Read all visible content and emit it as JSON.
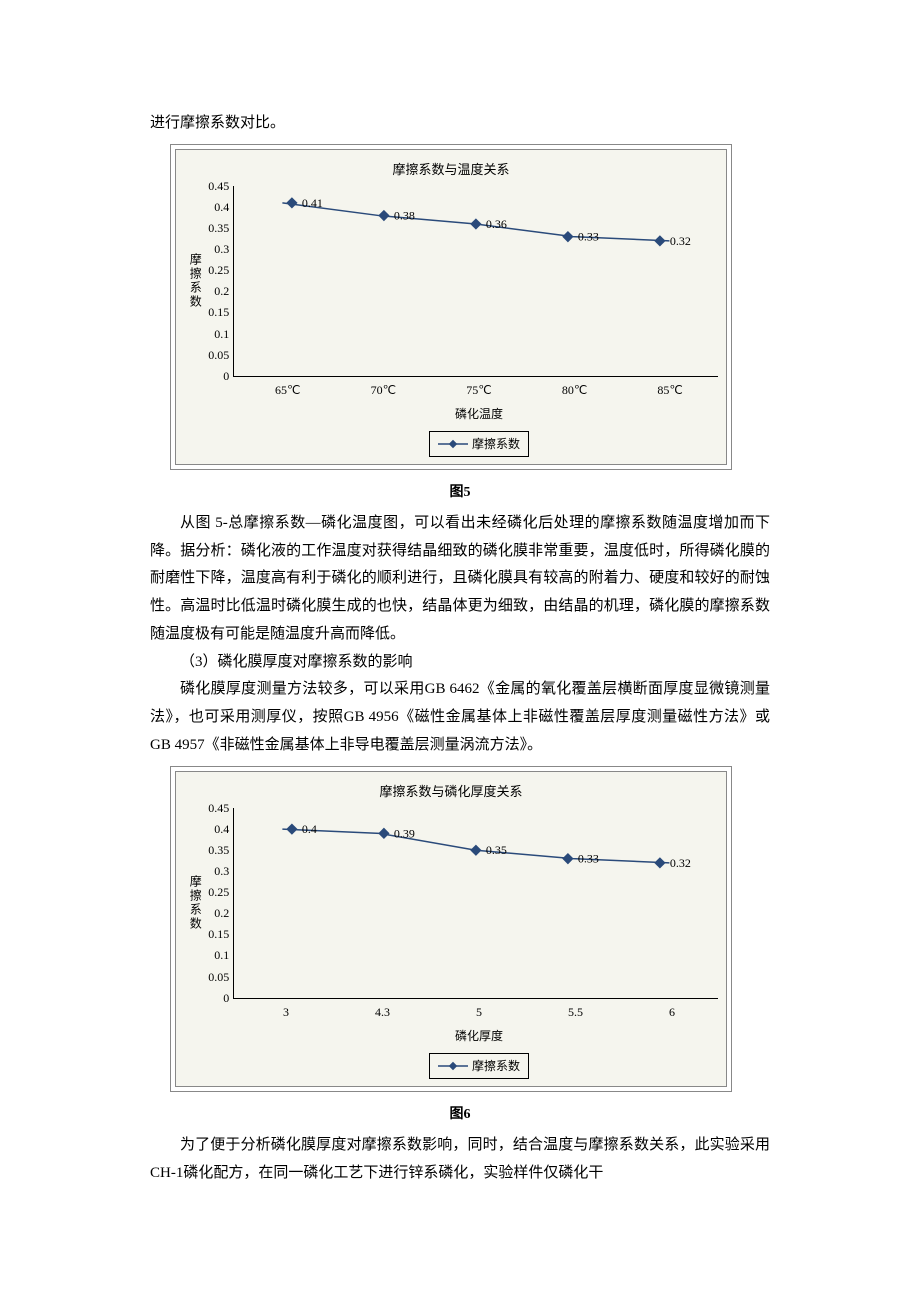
{
  "intro_line": "进行摩擦系数对比。",
  "chart1": {
    "type": "line",
    "title": "摩擦系数与温度关系",
    "ylabel": "摩擦系数",
    "xlabel": "磷化温度",
    "legend": "摩擦系数",
    "ylim": [
      0,
      0.45
    ],
    "ytick_step": 0.05,
    "yticks": [
      "0.45",
      "0.4",
      "0.35",
      "0.3",
      "0.25",
      "0.2",
      "0.15",
      "0.1",
      "0.05",
      "0"
    ],
    "xticks": [
      "65℃",
      "70℃",
      "75℃",
      "80℃",
      "85℃"
    ],
    "values": [
      0.41,
      0.38,
      0.36,
      0.33,
      0.32
    ],
    "value_labels": [
      "0.41",
      "0.38",
      "0.36",
      "0.33",
      "0.32"
    ],
    "line_color": "#2a4a7a",
    "marker_color": "#2a4a7a",
    "background_color": "#f5f5ee",
    "border_color": "#888888"
  },
  "fig5_caption": "图5",
  "para1": "从图 5-总摩擦系数—磷化温度图，可以看出未经磷化后处理的摩擦系数随温度增加而下降。据分析：磷化液的工作温度对获得结晶细致的磷化膜非常重要，温度低时，所得磷化膜的耐磨性下降，温度高有利于磷化的顺利进行，且磷化膜具有较高的附着力、硬度和较好的耐蚀性。高温时比低温时磷化膜生成的也快，结晶体更为细致，由结晶的机理，磷化膜的摩擦系数随温度极有可能是随温度升高而降低。",
  "sec3_head": "（3）磷化膜厚度对摩擦系数的影响",
  "para2": "磷化膜厚度测量方法较多，可以采用GB 6462《金属的氧化覆盖层横断面厚度显微镜测量法》，也可采用测厚仪，按照GB 4956《磁性金属基体上非磁性覆盖层厚度测量磁性方法》或GB 4957《非磁性金属基体上非导电覆盖层测量涡流方法》。",
  "chart2": {
    "type": "line",
    "title": "摩擦系数与磷化厚度关系",
    "ylabel": "摩擦系数",
    "xlabel": "磷化厚度",
    "legend": "摩擦系数",
    "ylim": [
      0,
      0.45
    ],
    "ytick_step": 0.05,
    "yticks": [
      "0.45",
      "0.4",
      "0.35",
      "0.3",
      "0.25",
      "0.2",
      "0.15",
      "0.1",
      "0.05",
      "0"
    ],
    "xticks": [
      "3",
      "4.3",
      "5",
      "5.5",
      "6"
    ],
    "values": [
      0.4,
      0.39,
      0.35,
      0.33,
      0.32
    ],
    "value_labels": [
      "0.4",
      "0.39",
      "0.35",
      "0.33",
      "0.32"
    ],
    "line_color": "#2a4a7a",
    "marker_color": "#2a4a7a",
    "background_color": "#f5f5ee",
    "border_color": "#888888"
  },
  "fig6_caption": "图6",
  "para3": "为了便于分析磷化膜厚度对摩擦系数影响，同时，结合温度与摩擦系数关系，此实验采用CH-1磷化配方，在同一磷化工艺下进行锌系磷化，实验样件仅磷化干"
}
